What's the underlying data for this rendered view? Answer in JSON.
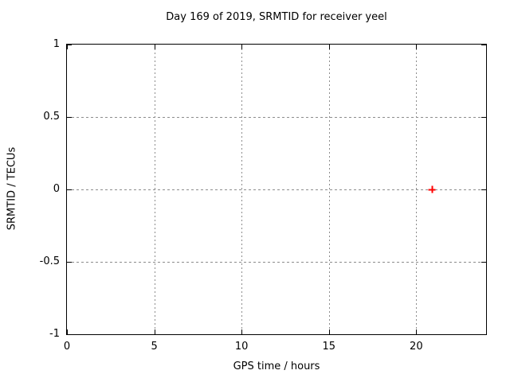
{
  "chart_data": {
    "type": "scatter",
    "title": "Day 169 of 2019, SRMTID for receiver yeel",
    "xlabel": "GPS time / hours",
    "ylabel": "SRMTID / TECUs",
    "xlim": [
      0,
      24
    ],
    "ylim": [
      -1,
      1
    ],
    "xticks": [
      {
        "value": 0,
        "label": "0"
      },
      {
        "value": 5,
        "label": "5"
      },
      {
        "value": 10,
        "label": "10"
      },
      {
        "value": 15,
        "label": "15"
      },
      {
        "value": 20,
        "label": "20"
      }
    ],
    "yticks": [
      {
        "value": -1,
        "label": "-1"
      },
      {
        "value": -0.5,
        "label": "-0.5"
      },
      {
        "value": 0,
        "label": "0"
      },
      {
        "value": 0.5,
        "label": "0.5"
      },
      {
        "value": 1,
        "label": "1"
      }
    ],
    "grid": true,
    "legend": "none",
    "series": [
      {
        "marker": "plus",
        "color": "#ff0000",
        "points": [
          {
            "x": 20.9,
            "y": 0.0
          }
        ]
      }
    ],
    "colors": {
      "background": "#ffffff",
      "border": "#000000",
      "grid": "#8c8c8c",
      "text": "#000000"
    }
  }
}
